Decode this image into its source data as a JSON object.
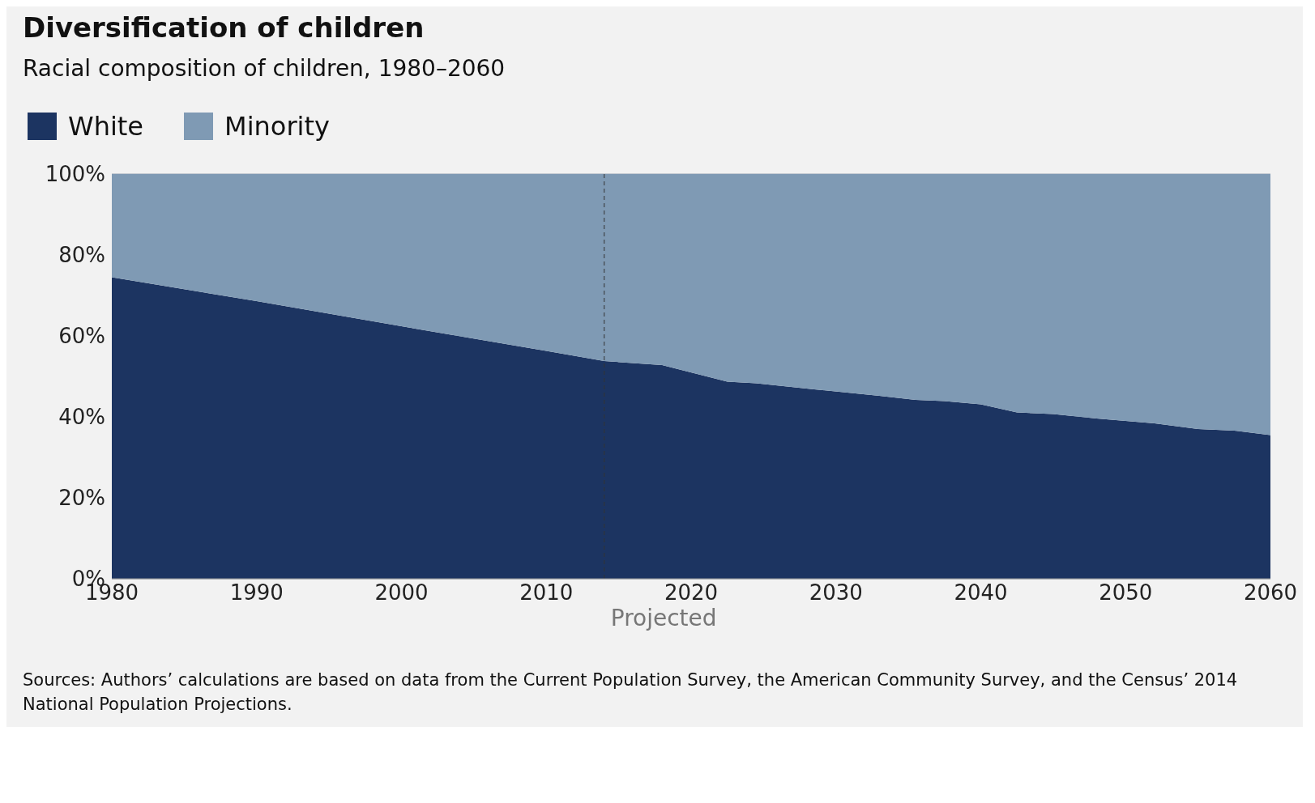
{
  "chart_data": {
    "type": "area",
    "title": "Diversification of children",
    "subtitle": "Racial composition of children, 1980–2060",
    "x": [
      1980,
      1990,
      2000,
      2010,
      2014,
      2018,
      2022.5,
      2024.5,
      2028.5,
      2033,
      2035.5,
      2037.5,
      2040,
      2042.5,
      2045,
      2048,
      2052,
      2055,
      2057.5,
      2060
    ],
    "series": [
      {
        "name": "White",
        "color": "#1c3461",
        "values": [
          74.5,
          68.6,
          62.4,
          56.3,
          53.8,
          52.8,
          48.7,
          48.3,
          46.8,
          45.2,
          44.2,
          43.9,
          43.1,
          41.1,
          40.7,
          39.6,
          38.4,
          37.0,
          36.6,
          35.5
        ]
      },
      {
        "name": "Minority",
        "color": "#7f9ab4",
        "values": [
          25.5,
          31.4,
          37.6,
          43.7,
          46.2,
          47.2,
          51.3,
          51.7,
          53.2,
          54.8,
          55.8,
          56.1,
          56.9,
          58.9,
          59.3,
          60.4,
          61.6,
          63.0,
          63.4,
          64.5
        ]
      }
    ],
    "stacked": true,
    "xlim": [
      1980,
      2060
    ],
    "xticks": [
      1980,
      1990,
      2000,
      2010,
      2020,
      2030,
      2040,
      2050,
      2060
    ],
    "ylim": [
      0,
      100
    ],
    "yticks": [
      {
        "value": 0,
        "label": "0%"
      },
      {
        "value": 20,
        "label": "20%"
      },
      {
        "value": 40,
        "label": "40%"
      },
      {
        "value": 60,
        "label": "60%"
      },
      {
        "value": 80,
        "label": "80%"
      },
      {
        "value": 100,
        "label": "100%"
      }
    ],
    "grid": "y",
    "legend": "top left",
    "ref_lines": [
      {
        "axis": "x",
        "value": 2014,
        "label": "Projected",
        "line_style": "dashed",
        "color": "#333333"
      }
    ],
    "annotations": [
      "Sources: Authors’ calculations are based on data from the Current Population Survey, the American Community Survey, and the Census’ 2014 National Population Projections."
    ]
  }
}
